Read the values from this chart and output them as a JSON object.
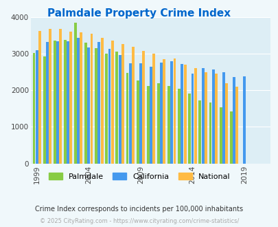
{
  "title": "Palmdale Property Crime Index",
  "title_color": "#0066cc",
  "background_color": "#ddeef5",
  "plot_bg_color": "#ddeef5",
  "outer_bg_color": "#f0f8fb",
  "years": [
    1999,
    2000,
    2001,
    2002,
    2003,
    2004,
    2005,
    2006,
    2007,
    2008,
    2009,
    2010,
    2011,
    2012,
    2013,
    2014,
    2015,
    2016,
    2017,
    2018,
    2019,
    2020,
    2021
  ],
  "palmdale": [
    3020,
    2920,
    3350,
    3380,
    3850,
    3300,
    3150,
    3000,
    3060,
    2480,
    2260,
    2120,
    2200,
    2110,
    2050,
    1910,
    1720,
    1660,
    1530,
    1430,
    null,
    null,
    null
  ],
  "california": [
    3100,
    3310,
    3340,
    3340,
    3440,
    3160,
    3310,
    3140,
    2960,
    2730,
    2730,
    2640,
    2760,
    2800,
    2720,
    2460,
    2610,
    2560,
    2490,
    2360,
    2370,
    null,
    null
  ],
  "national": [
    3620,
    3680,
    3670,
    3610,
    3590,
    3550,
    3440,
    3350,
    3260,
    3180,
    3070,
    2990,
    2840,
    2870,
    2690,
    2600,
    2500,
    2460,
    2200,
    2100,
    null,
    null,
    null
  ],
  "palmdale_color": "#88cc44",
  "california_color": "#4499ee",
  "national_color": "#ffbb44",
  "ylim": [
    0,
    4000
  ],
  "yticks": [
    0,
    1000,
    2000,
    3000,
    4000
  ],
  "xtick_labels": [
    "1999",
    "2004",
    "2009",
    "2014",
    "2019"
  ],
  "xtick_positions": [
    1999,
    2004,
    2009,
    2014,
    2019
  ],
  "subtitle": "Crime Index corresponds to incidents per 100,000 inhabitants",
  "footer": "© 2025 CityRating.com - https://www.cityrating.com/crime-statistics/",
  "subtitle_color": "#333333",
  "footer_color": "#aaaaaa"
}
